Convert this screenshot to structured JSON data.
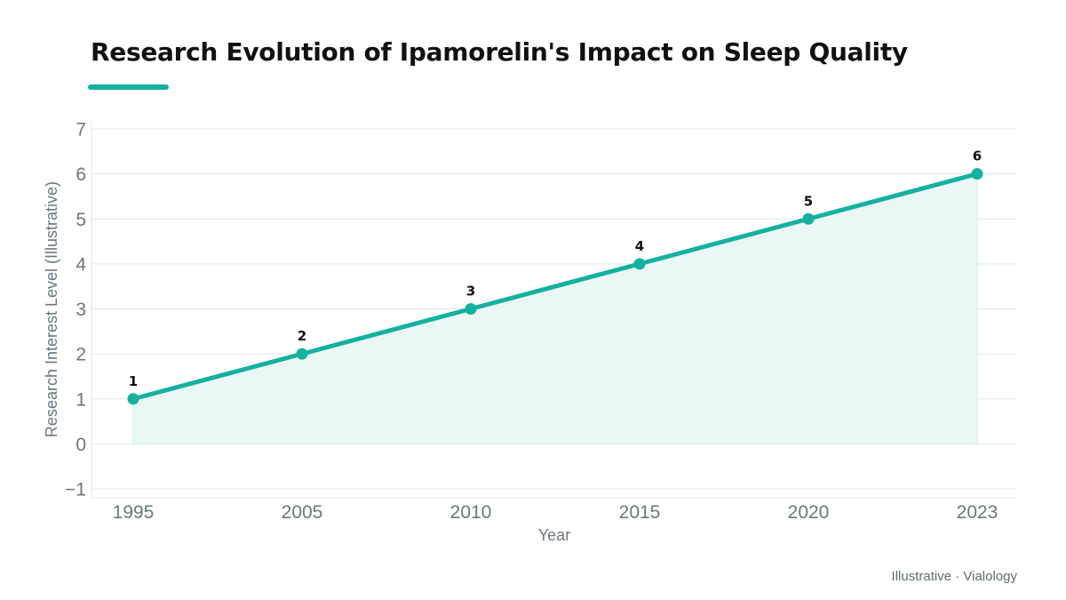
{
  "colors": {
    "accent": "#14b19e",
    "area_fill": "#eaf8f5",
    "grid": "#e3e6e8",
    "text": "#111111",
    "muted": "#6b7780"
  },
  "chart_data": {
    "type": "line",
    "title": "Research Evolution of Ipamorelin's Impact on Sleep Quality",
    "xlabel": "Year",
    "ylabel": "Research Interest Level (Illustrative)",
    "categories": [
      "1995",
      "2005",
      "2010",
      "2015",
      "2020",
      "2023"
    ],
    "values": [
      1,
      2,
      3,
      4,
      5,
      6
    ],
    "data_labels": [
      "1",
      "2",
      "3",
      "4",
      "5",
      "6"
    ],
    "ylim": [
      -1,
      7
    ],
    "yticks": [
      "−1",
      "0",
      "1",
      "2",
      "3",
      "4",
      "5",
      "6",
      "7"
    ],
    "area_fill_to": 0,
    "grid": true,
    "legend": "none"
  },
  "footer": "Illustrative · Vialology"
}
